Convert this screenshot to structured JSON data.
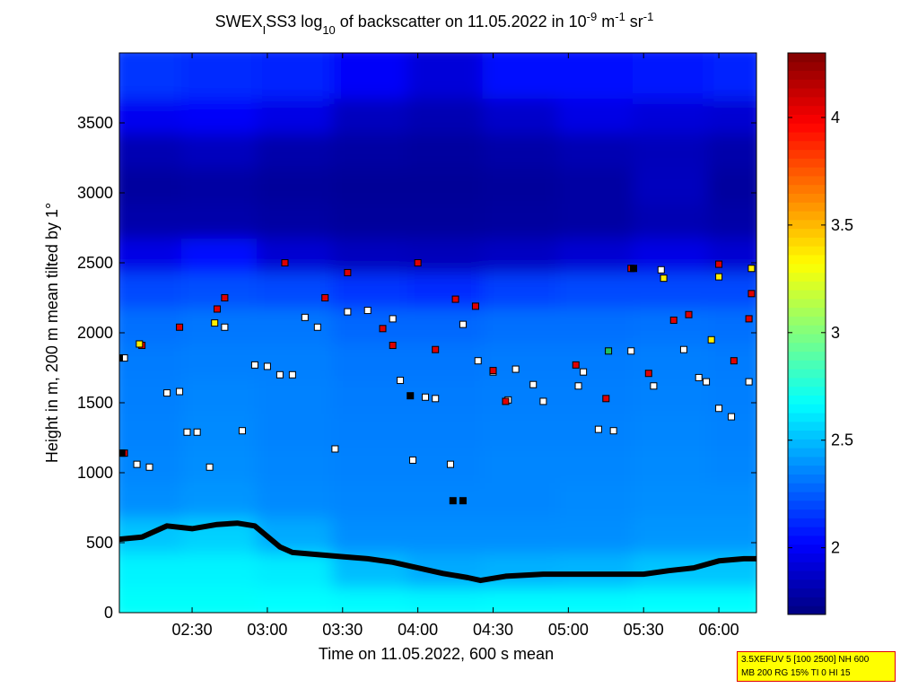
{
  "chart_data": {
    "type": "heatmap",
    "title": [
      {
        "text": "SWEX"
      },
      {
        "text": "I",
        "script": "sub"
      },
      {
        "text": "SS3 log"
      },
      {
        "text": "10",
        "script": "sub"
      },
      {
        "text": " of backscatter on 11.05.2022 in 10"
      },
      {
        "text": "-9",
        "script": "super"
      },
      {
        "text": " m"
      },
      {
        "text": "-1",
        "script": "super"
      },
      {
        "text": " sr"
      },
      {
        "text": "-1",
        "script": "super"
      }
    ],
    "xlabel": "Time on 11.05.2022, 600 s mean",
    "ylabel": "Height in m, 200 m mean tilted by 1°",
    "xlim": [
      121,
      375
    ],
    "xticks": [
      {
        "value": 150,
        "label": "02:30"
      },
      {
        "value": 180,
        "label": "03:00"
      },
      {
        "value": 210,
        "label": "03:30"
      },
      {
        "value": 240,
        "label": "04:00"
      },
      {
        "value": 270,
        "label": "04:30"
      },
      {
        "value": 300,
        "label": "05:00"
      },
      {
        "value": 330,
        "label": "05:30"
      },
      {
        "value": 360,
        "label": "06:00"
      }
    ],
    "ylim": [
      0,
      4000
    ],
    "yticks": [
      0,
      500,
      1000,
      1500,
      2000,
      2500,
      3000,
      3500
    ],
    "colormap": "jet",
    "clim": [
      1.69,
      4.3
    ],
    "cticks": [
      2,
      2.5,
      3,
      3.5,
      4
    ],
    "x_edges": [
      121,
      150,
      180,
      210,
      240,
      270,
      300,
      330,
      360,
      375
    ],
    "y_edges": [
      0,
      250,
      500,
      750,
      1000,
      1250,
      1500,
      1750,
      2000,
      2250,
      2500,
      2750,
      3000,
      3250,
      3500,
      3750,
      4000
    ],
    "z": [
      [
        2.68,
        2.68,
        2.67,
        2.66,
        2.65,
        2.66,
        2.66,
        2.67,
        2.67
      ],
      [
        2.64,
        2.64,
        2.62,
        2.5,
        2.45,
        2.47,
        2.48,
        2.52,
        2.52
      ],
      [
        2.52,
        2.55,
        2.45,
        2.38,
        2.38,
        2.38,
        2.38,
        2.4,
        2.4
      ],
      [
        2.38,
        2.4,
        2.37,
        2.36,
        2.36,
        2.36,
        2.37,
        2.38,
        2.38
      ],
      [
        2.36,
        2.38,
        2.36,
        2.35,
        2.35,
        2.36,
        2.36,
        2.37,
        2.36
      ],
      [
        2.35,
        2.37,
        2.35,
        2.34,
        2.34,
        2.35,
        2.35,
        2.36,
        2.35
      ],
      [
        2.34,
        2.36,
        2.35,
        2.33,
        2.33,
        2.34,
        2.34,
        2.35,
        2.34
      ],
      [
        2.33,
        2.34,
        2.34,
        2.32,
        2.32,
        2.33,
        2.33,
        2.34,
        2.33
      ],
      [
        2.3,
        2.32,
        2.32,
        2.28,
        2.28,
        2.3,
        2.3,
        2.31,
        2.3
      ],
      [
        2.2,
        2.22,
        2.2,
        2.15,
        2.12,
        2.18,
        2.2,
        2.2,
        2.2
      ],
      [
        1.95,
        2.05,
        1.9,
        1.85,
        1.84,
        1.86,
        1.9,
        1.95,
        1.9
      ],
      [
        1.8,
        1.8,
        1.78,
        1.76,
        1.76,
        1.77,
        1.78,
        1.82,
        1.79
      ],
      [
        1.77,
        1.78,
        1.76,
        1.75,
        1.75,
        1.76,
        1.78,
        1.85,
        1.77
      ],
      [
        1.82,
        1.85,
        1.8,
        1.78,
        1.77,
        1.79,
        1.82,
        1.84,
        1.8
      ],
      [
        1.98,
        2.0,
        1.95,
        1.85,
        1.82,
        1.88,
        1.95,
        1.92,
        1.9
      ],
      [
        2.15,
        2.12,
        2.1,
        2.0,
        1.92,
        2.05,
        2.05,
        2.08,
        2.1
      ]
    ],
    "layer_line": {
      "color": "#000000",
      "x": [
        121,
        130,
        140,
        150,
        160,
        168,
        175,
        185,
        190,
        200,
        210,
        220,
        230,
        240,
        250,
        260,
        265,
        275,
        290,
        310,
        330,
        340,
        350,
        360,
        370,
        375
      ],
      "y": [
        525,
        540,
        620,
        600,
        630,
        640,
        620,
        470,
        430,
        415,
        400,
        385,
        360,
        320,
        280,
        250,
        230,
        260,
        275,
        275,
        275,
        300,
        320,
        370,
        385,
        385
      ]
    },
    "markers": [
      {
        "color": "#ffffff",
        "x": [
          123,
          128,
          133,
          140,
          145,
          148,
          152,
          157,
          163,
          170,
          175,
          180,
          185,
          190,
          195,
          200,
          207,
          212,
          220,
          230,
          233,
          238,
          243,
          247,
          253,
          258,
          264,
          270,
          276,
          279,
          286,
          290,
          304,
          306,
          312,
          318,
          325,
          334,
          337,
          346,
          352,
          355,
          360,
          365,
          372
        ],
        "y": [
          1820,
          1060,
          1040,
          1570,
          1580,
          1290,
          1290,
          1040,
          2040,
          1300,
          1770,
          1760,
          1700,
          1700,
          2110,
          2040,
          1170,
          2150,
          2160,
          2100,
          1660,
          1090,
          1540,
          1530,
          1060,
          2060,
          1800,
          1720,
          1520,
          1740,
          1630,
          1510,
          1620,
          1720,
          1310,
          1300,
          1870,
          1620,
          2450,
          1880,
          1680,
          1650,
          1460,
          1400,
          1650
        ]
      },
      {
        "color": "#e00000",
        "x": [
          123,
          130,
          145,
          160,
          163,
          187,
          203,
          212,
          226,
          230,
          240,
          247,
          255,
          263,
          270,
          275,
          303,
          315,
          325,
          332,
          342,
          348,
          360,
          366,
          372,
          373
        ],
        "y": [
          1140,
          1910,
          2040,
          2170,
          2250,
          2500,
          2250,
          2430,
          2030,
          1910,
          2500,
          1880,
          2240,
          2190,
          1730,
          1510,
          1770,
          1530,
          2460,
          1710,
          2090,
          2130,
          2490,
          1800,
          2100,
          2280
        ]
      },
      {
        "color": "#ffee00",
        "x": [
          129,
          159,
          338,
          357,
          360,
          373
        ],
        "y": [
          1920,
          2070,
          2390,
          1950,
          2400,
          2460
        ]
      },
      {
        "color": "#20c060",
        "x": [
          316
        ],
        "y": [
          1870
        ]
      },
      {
        "color": "#000000",
        "x": [
          121,
          122,
          237,
          254,
          258,
          326
        ],
        "y": [
          1820,
          1140,
          1550,
          800,
          800,
          2460
        ]
      }
    ],
    "note": [
      "3.5XEFUV 5 [100 2500] NH 600",
      "MB 200 RG 15% TI 0 HI 15"
    ]
  }
}
